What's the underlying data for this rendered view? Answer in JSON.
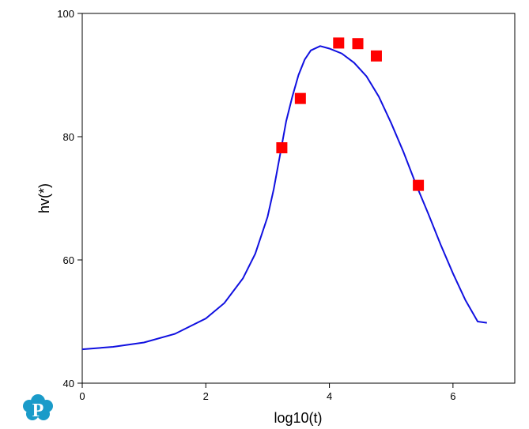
{
  "chart_data": {
    "type": "scatter",
    "xlabel": "log10(t)",
    "ylabel": "hv(*)",
    "xlim": [
      0,
      7
    ],
    "ylim": [
      40,
      100
    ],
    "xticks": [
      0,
      2,
      4,
      6
    ],
    "yticks": [
      40,
      60,
      80,
      100
    ],
    "grid": false,
    "series": [
      {
        "kind": "line",
        "color": "#1010e0",
        "x": [
          0,
          0.5,
          1.0,
          1.5,
          2.0,
          2.3,
          2.6,
          2.8,
          3.0,
          3.1,
          3.2,
          3.3,
          3.4,
          3.5,
          3.6,
          3.7,
          3.85,
          4.0,
          4.2,
          4.4,
          4.6,
          4.8,
          5.0,
          5.2,
          5.4,
          5.6,
          5.8,
          6.0,
          6.2,
          6.4,
          6.55
        ],
        "y": [
          45.5,
          45.9,
          46.6,
          48.0,
          50.5,
          53.0,
          57.0,
          61.0,
          67.0,
          71.5,
          77.0,
          82.5,
          86.5,
          90.0,
          92.5,
          94.0,
          94.7,
          94.3,
          93.5,
          92.0,
          89.8,
          86.5,
          82.2,
          77.5,
          72.3,
          67.5,
          62.5,
          57.8,
          53.5,
          50.0,
          49.8
        ]
      },
      {
        "kind": "marker",
        "color": "#ff0000",
        "x": [
          3.23,
          3.53,
          4.15,
          4.46,
          4.76,
          5.44
        ],
        "y": [
          78.2,
          86.2,
          95.2,
          95.1,
          93.1,
          72.1
        ]
      }
    ]
  },
  "logo": {
    "letter": "P",
    "color": "#1a9bc9",
    "icon": "petrosoft-cloud-logo-icon"
  }
}
